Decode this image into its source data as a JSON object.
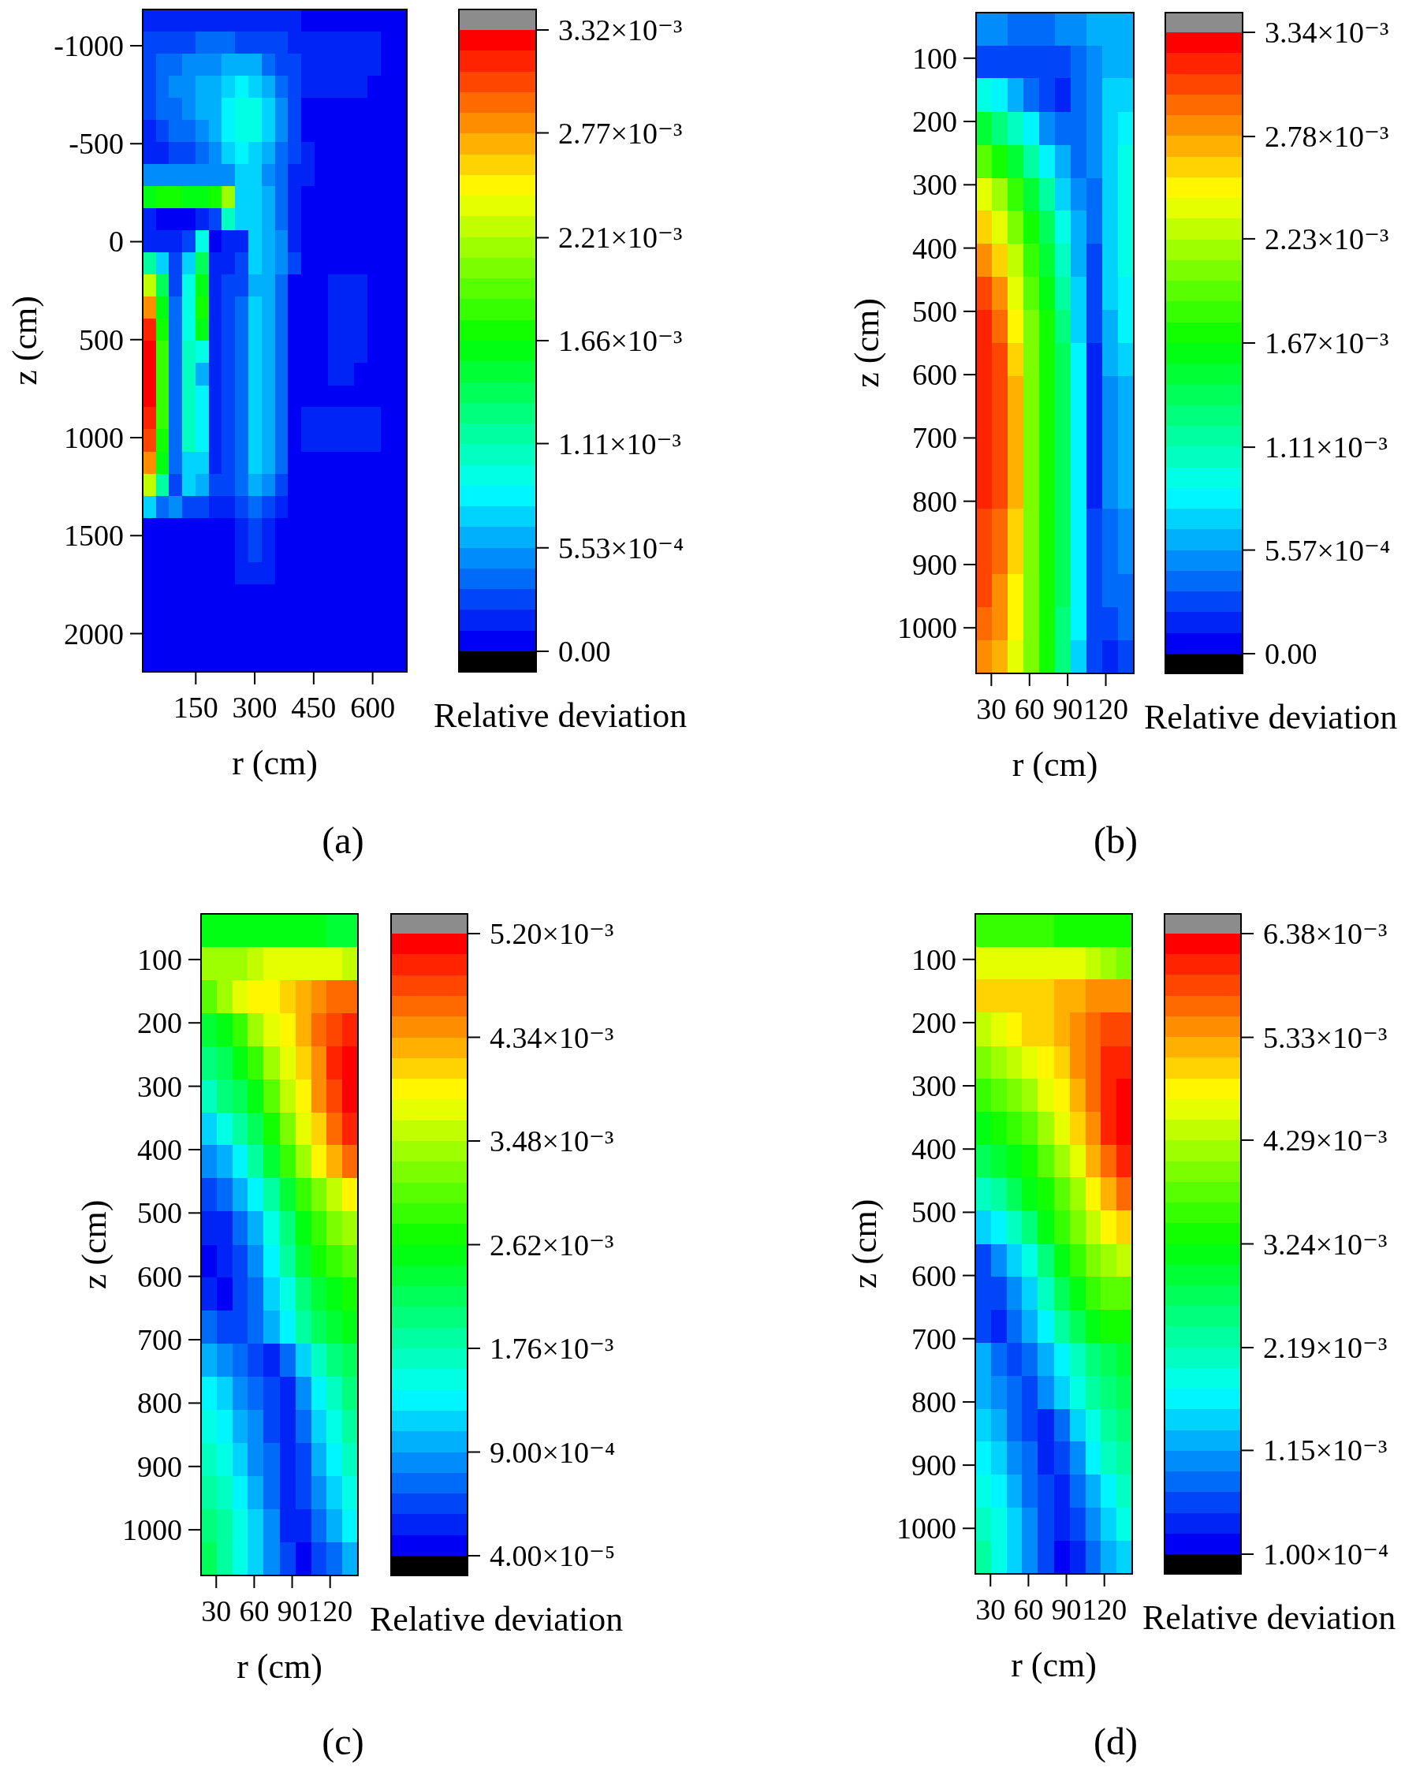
{
  "chart_data": [
    {
      "type": "heatmap",
      "title": "(a)",
      "xlabel": "r (cm)",
      "ylabel": "z (cm)",
      "clabel": "Relative deviation",
      "x": [
        32,
        65,
        99,
        133,
        166,
        200,
        233,
        267,
        301,
        334,
        368,
        401,
        435,
        469,
        502,
        536,
        569,
        603,
        637,
        670
      ],
      "y": [
        -1129,
        -1016,
        -903,
        -791,
        -678,
        -565,
        -452,
        -340,
        -227,
        -114,
        0,
        112,
        225,
        337,
        450,
        563,
        676,
        789,
        901,
        1014,
        1127,
        1240,
        1352,
        1465,
        1578,
        1691,
        1803,
        1916,
        2029,
        2142
      ],
      "xlim": [
        15,
        687
      ],
      "xticks": [
        150,
        300,
        450,
        600
      ],
      "ylim": [
        2195,
        -1185
      ],
      "yticks": [
        -1000,
        -500,
        0,
        500,
        1000,
        1500,
        2000
      ],
      "clim": [
        0,
        0.00332
      ],
      "cticks": [
        {
          "value": 0,
          "label": "0.00"
        },
        {
          "value": 0.000553,
          "label": "5.53×10⁻⁴"
        },
        {
          "value": 0.00111,
          "label": "1.11×10⁻³"
        },
        {
          "value": 0.00166,
          "label": "1.66×10⁻³"
        },
        {
          "value": 0.00221,
          "label": "2.21×10⁻³"
        },
        {
          "value": 0.00277,
          "label": "2.77×10⁻³"
        },
        {
          "value": 0.00332,
          "label": "3.32×10⁻³"
        }
      ],
      "cells": [
        [
          0.00012,
          0.00012,
          0.00012,
          0.00012,
          0.00012,
          0.00012,
          0.00012,
          0.00012,
          0.00012,
          0.00012,
          0.00012,
          0.00012,
          1e-05,
          1e-05,
          1e-05,
          1e-05,
          1e-05,
          1e-05,
          1e-05,
          1e-05
        ],
        [
          0.00023,
          0.00023,
          0.00023,
          0.00023,
          0.00034,
          0.00034,
          0.00034,
          0.00023,
          0.00023,
          0.00023,
          0.00023,
          0.00012,
          0.00012,
          0.00012,
          0.00012,
          0.00012,
          0.00012,
          0.00012,
          1e-05,
          1e-05
        ],
        [
          0.00023,
          0.00034,
          0.00034,
          0.00045,
          0.00045,
          0.00045,
          0.00056,
          0.00056,
          0.00056,
          0.00034,
          0.00023,
          0.00023,
          0.00012,
          0.00012,
          0.00012,
          0.00012,
          0.00012,
          0.00012,
          1e-05,
          1e-05
        ],
        [
          0.00023,
          0.00034,
          0.00045,
          0.00045,
          0.00056,
          0.00056,
          0.00067,
          0.00078,
          0.00067,
          0.00056,
          0.00034,
          0.00023,
          0.00012,
          0.00012,
          0.00012,
          0.00012,
          0.00012,
          1e-05,
          1e-05,
          1e-05
        ],
        [
          0.00023,
          0.00034,
          0.00034,
          0.00045,
          0.00056,
          0.00056,
          0.00078,
          0.00089,
          0.00089,
          0.00067,
          0.00045,
          0.00023,
          1e-05,
          1e-05,
          1e-05,
          1e-05,
          1e-05,
          1e-05,
          1e-05,
          1e-05
        ],
        [
          0.00012,
          0.00023,
          0.00034,
          0.00034,
          0.00045,
          0.00056,
          0.00078,
          0.00089,
          0.00089,
          0.00067,
          0.00045,
          0.00023,
          1e-05,
          1e-05,
          1e-05,
          1e-05,
          1e-05,
          1e-05,
          1e-05,
          1e-05
        ],
        [
          0.00012,
          0.00012,
          0.00023,
          0.00023,
          0.00034,
          0.00045,
          0.00067,
          0.00078,
          0.00067,
          0.00056,
          0.00034,
          0.00023,
          0.00012,
          1e-05,
          1e-05,
          1e-05,
          1e-05,
          1e-05,
          1e-05,
          1e-05
        ],
        [
          0.00045,
          0.00045,
          0.00045,
          0.00045,
          0.00045,
          0.00045,
          0.00045,
          0.00067,
          0.00067,
          0.00045,
          0.00034,
          0.00012,
          0.00012,
          1e-05,
          1e-05,
          1e-05,
          1e-05,
          1e-05,
          1e-05,
          1e-05
        ],
        [
          0.00155,
          0.00167,
          0.00167,
          0.00155,
          0.00155,
          0.00167,
          0.00211,
          0.00067,
          0.00067,
          0.00056,
          0.00034,
          0.00012,
          1e-05,
          1e-05,
          1e-05,
          1e-05,
          1e-05,
          1e-05,
          1e-05,
          1e-05
        ],
        [
          0.00012,
          1e-05,
          1e-05,
          1e-05,
          0.00012,
          0.00023,
          0.001,
          0.00067,
          0.00067,
          0.00056,
          0.00034,
          0.00012,
          1e-05,
          1e-05,
          1e-05,
          1e-05,
          1e-05,
          1e-05,
          1e-05,
          1e-05
        ],
        [
          0.00012,
          0.00012,
          0.00012,
          0.00023,
          0.00089,
          1e-05,
          0.00012,
          0.00012,
          0.00067,
          0.00056,
          0.00045,
          0.00012,
          1e-05,
          1e-05,
          1e-05,
          1e-05,
          1e-05,
          1e-05,
          1e-05,
          1e-05
        ],
        [
          0.00111,
          0.00067,
          0.00023,
          0.00067,
          0.00133,
          0.00012,
          0.00012,
          0.00023,
          0.00067,
          0.00056,
          0.00045,
          0.00023,
          1e-05,
          1e-05,
          1e-05,
          1e-05,
          1e-05,
          1e-05,
          1e-05,
          1e-05
        ],
        [
          0.00222,
          0.00133,
          0.00023,
          0.00089,
          0.00155,
          0.00012,
          0.00023,
          0.00023,
          0.00056,
          0.00056,
          0.00034,
          1e-05,
          1e-05,
          1e-05,
          0.00012,
          0.00012,
          0.00012,
          1e-05,
          1e-05,
          1e-05
        ],
        [
          0.00277,
          0.00155,
          0.00034,
          0.00089,
          0.00167,
          0.00012,
          0.00023,
          0.00034,
          0.00067,
          0.00056,
          0.00034,
          1e-05,
          1e-05,
          1e-05,
          0.00012,
          0.00012,
          0.00012,
          1e-05,
          1e-05,
          1e-05
        ],
        [
          0.0031,
          0.00167,
          0.00034,
          0.00089,
          0.00155,
          0.00012,
          0.00023,
          0.00034,
          0.00067,
          0.00056,
          0.00034,
          1e-05,
          1e-05,
          1e-05,
          0.00012,
          0.00012,
          0.00012,
          1e-05,
          1e-05,
          1e-05
        ],
        [
          0.00321,
          0.00178,
          0.00034,
          0.001,
          0.00089,
          0.00012,
          0.00023,
          0.00034,
          0.00067,
          0.00056,
          0.00034,
          1e-05,
          1e-05,
          1e-05,
          0.00012,
          0.00012,
          0.00012,
          1e-05,
          1e-05,
          1e-05
        ],
        [
          0.00321,
          0.00178,
          0.00034,
          0.001,
          0.00056,
          0.00012,
          0.00023,
          0.00034,
          0.00067,
          0.00056,
          0.00034,
          1e-05,
          1e-05,
          1e-05,
          0.00012,
          0.00012,
          1e-05,
          1e-05,
          1e-05,
          1e-05
        ],
        [
          0.00321,
          0.00178,
          0.00034,
          0.001,
          0.00078,
          0.00012,
          0.00023,
          0.00034,
          0.00067,
          0.00056,
          0.00034,
          1e-05,
          1e-05,
          1e-05,
          1e-05,
          1e-05,
          1e-05,
          1e-05,
          1e-05,
          1e-05
        ],
        [
          0.0031,
          0.00178,
          0.00034,
          0.001,
          0.00078,
          0.00012,
          0.00023,
          0.00034,
          0.00067,
          0.00056,
          0.00034,
          1e-05,
          0.00012,
          0.00012,
          0.00012,
          0.00012,
          0.00012,
          0.00012,
          1e-05,
          1e-05
        ],
        [
          0.00299,
          0.00167,
          0.00034,
          0.001,
          0.00078,
          0.00012,
          0.00023,
          0.00034,
          0.00067,
          0.00056,
          0.00034,
          1e-05,
          0.00012,
          0.00012,
          0.00012,
          0.00012,
          0.00012,
          0.00012,
          1e-05,
          1e-05
        ],
        [
          0.00277,
          0.00155,
          0.00034,
          0.00067,
          0.00067,
          0.00012,
          0.00023,
          0.00034,
          0.00067,
          0.00056,
          0.00034,
          1e-05,
          1e-05,
          1e-05,
          1e-05,
          1e-05,
          1e-05,
          1e-05,
          1e-05,
          1e-05
        ],
        [
          0.00222,
          0.00111,
          0.00023,
          0.00067,
          0.00056,
          0.00023,
          0.00023,
          0.00034,
          0.00056,
          0.00045,
          0.00023,
          1e-05,
          1e-05,
          1e-05,
          1e-05,
          1e-05,
          1e-05,
          1e-05,
          1e-05,
          1e-05
        ],
        [
          0.00067,
          0.00034,
          0.00045,
          0.00023,
          0.00023,
          0.00012,
          0.00012,
          0.00023,
          0.00034,
          0.00023,
          0.00012,
          1e-05,
          1e-05,
          1e-05,
          1e-05,
          1e-05,
          1e-05,
          1e-05,
          1e-05,
          1e-05
        ],
        [
          1e-05,
          1e-05,
          1e-05,
          1e-05,
          1e-05,
          1e-05,
          1e-05,
          0.00012,
          0.00023,
          0.00012,
          1e-05,
          1e-05,
          1e-05,
          1e-05,
          1e-05,
          1e-05,
          1e-05,
          1e-05,
          1e-05,
          1e-05
        ],
        [
          1e-05,
          1e-05,
          1e-05,
          1e-05,
          1e-05,
          1e-05,
          1e-05,
          0.00012,
          0.00023,
          0.00012,
          1e-05,
          1e-05,
          1e-05,
          1e-05,
          1e-05,
          1e-05,
          1e-05,
          1e-05,
          1e-05,
          1e-05
        ],
        [
          1e-05,
          1e-05,
          1e-05,
          1e-05,
          1e-05,
          1e-05,
          1e-05,
          0.00012,
          0.00012,
          0.00012,
          1e-05,
          1e-05,
          1e-05,
          1e-05,
          1e-05,
          1e-05,
          1e-05,
          1e-05,
          1e-05,
          1e-05
        ],
        [
          1e-05,
          1e-05,
          1e-05,
          1e-05,
          1e-05,
          1e-05,
          1e-05,
          1e-05,
          1e-05,
          1e-05,
          1e-05,
          1e-05,
          1e-05,
          1e-05,
          1e-05,
          1e-05,
          1e-05,
          1e-05,
          1e-05,
          1e-05
        ],
        [
          1e-05,
          1e-05,
          1e-05,
          1e-05,
          1e-05,
          1e-05,
          1e-05,
          1e-05,
          1e-05,
          1e-05,
          1e-05,
          1e-05,
          1e-05,
          1e-05,
          1e-05,
          1e-05,
          1e-05,
          1e-05,
          1e-05,
          1e-05
        ],
        [
          1e-05,
          1e-05,
          1e-05,
          1e-05,
          1e-05,
          1e-05,
          1e-05,
          1e-05,
          1e-05,
          1e-05,
          1e-05,
          1e-05,
          1e-05,
          1e-05,
          1e-05,
          1e-05,
          1e-05,
          1e-05,
          1e-05,
          1e-05
        ],
        [
          1e-05,
          1e-05,
          1e-05,
          1e-05,
          1e-05,
          1e-05,
          1e-05,
          1e-05,
          1e-05,
          1e-05,
          1e-05,
          1e-05,
          1e-05,
          1e-05,
          1e-05,
          1e-05,
          1e-05,
          1e-05,
          1e-05,
          1e-05
        ]
      ]
    },
    {
      "type": "heatmap",
      "title": "(b)",
      "xlabel": "r (cm)",
      "ylabel": "z (cm)",
      "clabel": "Relative deviation",
      "x": [
        24,
        37,
        49,
        61,
        74,
        86,
        99,
        111,
        123,
        136
      ],
      "y": [
        54,
        106,
        158,
        211,
        263,
        315,
        367,
        419,
        471,
        524,
        576,
        628,
        680,
        733,
        785,
        837,
        889,
        941,
        994,
        1046
      ],
      "xlim": [
        18,
        142
      ],
      "xticks": [
        30,
        60,
        90,
        120
      ],
      "ylim": [
        1072,
        28
      ],
      "yticks": [
        100,
        200,
        300,
        400,
        500,
        600,
        700,
        800,
        900,
        1000
      ],
      "clim": [
        0,
        0.00334
      ],
      "cticks": [
        {
          "value": 0,
          "label": "0.00"
        },
        {
          "value": 0.000557,
          "label": "5.57×10⁻⁴"
        },
        {
          "value": 0.00111,
          "label": "1.11×10⁻³"
        },
        {
          "value": 0.00167,
          "label": "1.67×10⁻³"
        },
        {
          "value": 0.00223,
          "label": "2.23×10⁻³"
        },
        {
          "value": 0.00278,
          "label": "2.78×10⁻³"
        },
        {
          "value": 0.00334,
          "label": "3.34×10⁻³"
        }
      ],
      "cells": [
        [
          0.00045,
          0.00045,
          0.00034,
          0.00034,
          0.00034,
          0.00045,
          0.00045,
          0.00056,
          0.00056,
          0.00056
        ],
        [
          0.00023,
          0.00023,
          0.00023,
          0.00023,
          0.00023,
          0.00023,
          0.00034,
          0.00045,
          0.00056,
          0.00056
        ],
        [
          0.0009,
          0.00078,
          0.00056,
          0.00034,
          0.00023,
          0.00012,
          0.00034,
          0.00045,
          0.00067,
          0.00067
        ],
        [
          0.00145,
          0.00123,
          0.00101,
          0.00078,
          0.00045,
          0.00034,
          0.00034,
          0.00045,
          0.00067,
          0.00078
        ],
        [
          0.0019,
          0.00168,
          0.00145,
          0.00112,
          0.00078,
          0.00056,
          0.00034,
          0.00045,
          0.00067,
          0.0009
        ],
        [
          0.00234,
          0.00212,
          0.00179,
          0.00145,
          0.00112,
          0.00067,
          0.00045,
          0.00034,
          0.00067,
          0.0009
        ],
        [
          0.00257,
          0.00234,
          0.00201,
          0.00168,
          0.00134,
          0.0009,
          0.00056,
          0.00034,
          0.00067,
          0.0009
        ],
        [
          0.00279,
          0.00257,
          0.00223,
          0.00179,
          0.00145,
          0.00101,
          0.00056,
          0.00023,
          0.00067,
          0.0009
        ],
        [
          0.00301,
          0.00279,
          0.00234,
          0.0019,
          0.00156,
          0.00112,
          0.00067,
          0.00023,
          0.00067,
          0.00078
        ],
        [
          0.00312,
          0.0029,
          0.00245,
          0.00201,
          0.00168,
          0.00123,
          0.00067,
          0.00023,
          0.00056,
          0.00078
        ],
        [
          0.00312,
          0.00301,
          0.00257,
          0.00201,
          0.00168,
          0.00134,
          0.00078,
          0.00012,
          0.00056,
          0.00067
        ],
        [
          0.00312,
          0.00301,
          0.00268,
          0.00201,
          0.00168,
          0.00134,
          0.00078,
          0.00012,
          0.00045,
          0.00056
        ],
        [
          0.00312,
          0.00301,
          0.00268,
          0.00201,
          0.00168,
          0.00134,
          0.00078,
          0.00012,
          0.00045,
          0.00056
        ],
        [
          0.00312,
          0.00301,
          0.00268,
          0.00201,
          0.00168,
          0.00134,
          0.00078,
          0.00012,
          0.00045,
          0.00056
        ],
        [
          0.00312,
          0.00301,
          0.00268,
          0.00201,
          0.00168,
          0.00134,
          0.00078,
          0.00012,
          0.00045,
          0.00056
        ],
        [
          0.00301,
          0.0029,
          0.00257,
          0.00201,
          0.00168,
          0.00134,
          0.00078,
          0.00023,
          0.00034,
          0.00045
        ],
        [
          0.00301,
          0.0029,
          0.00257,
          0.00201,
          0.00168,
          0.00134,
          0.00078,
          0.00023,
          0.00034,
          0.00045
        ],
        [
          0.00301,
          0.00279,
          0.00245,
          0.00201,
          0.00168,
          0.00134,
          0.00078,
          0.00023,
          0.00034,
          0.00034
        ],
        [
          0.0029,
          0.00279,
          0.00245,
          0.00201,
          0.00168,
          0.00123,
          0.00078,
          0.00023,
          0.00023,
          0.00034
        ],
        [
          0.00279,
          0.00268,
          0.00234,
          0.00201,
          0.00168,
          0.00123,
          0.00067,
          0.00023,
          0.00012,
          0.00023
        ]
      ]
    },
    {
      "type": "heatmap",
      "title": "(c)",
      "xlabel": "r (cm)",
      "ylabel": "z (cm)",
      "clabel": "Relative deviation",
      "x": [
        24,
        37,
        49,
        61,
        74,
        86,
        99,
        111,
        123,
        136
      ],
      "y": [
        54,
        106,
        158,
        211,
        263,
        315,
        367,
        419,
        471,
        524,
        576,
        628,
        680,
        733,
        785,
        837,
        889,
        941,
        994,
        1046
      ],
      "xlim": [
        18,
        142
      ],
      "xticks": [
        30,
        60,
        90,
        120
      ],
      "ylim": [
        1072,
        28
      ],
      "yticks": [
        100,
        200,
        300,
        400,
        500,
        600,
        700,
        800,
        900,
        1000
      ],
      "clim": [
        4e-05,
        0.0052
      ],
      "cticks": [
        {
          "value": 4e-05,
          "label": "4.00×10⁻⁵"
        },
        {
          "value": 0.0009,
          "label": "9.00×10⁻⁴"
        },
        {
          "value": 0.00176,
          "label": "1.76×10⁻³"
        },
        {
          "value": 0.00262,
          "label": "2.62×10⁻³"
        },
        {
          "value": 0.00348,
          "label": "3.48×10⁻³"
        },
        {
          "value": 0.00434,
          "label": "4.34×10⁻³"
        },
        {
          "value": 0.0052,
          "label": "5.20×10⁻³"
        }
      ],
      "cells": [
        [
          0.00245,
          0.00245,
          0.00245,
          0.00245,
          0.00245,
          0.00245,
          0.00245,
          0.00245,
          0.00228,
          0.00228
        ],
        [
          0.00331,
          0.00331,
          0.00331,
          0.00349,
          0.00366,
          0.00366,
          0.00366,
          0.00366,
          0.00366,
          0.00349
        ],
        [
          0.00297,
          0.00331,
          0.00366,
          0.00383,
          0.00383,
          0.004,
          0.00417,
          0.00435,
          0.00452,
          0.00452
        ],
        [
          0.00228,
          0.00245,
          0.0028,
          0.00331,
          0.00366,
          0.00383,
          0.00417,
          0.00452,
          0.00469,
          0.00486
        ],
        [
          0.00194,
          0.00211,
          0.00245,
          0.0028,
          0.00331,
          0.00366,
          0.004,
          0.00435,
          0.00486,
          0.00503
        ],
        [
          0.00159,
          0.00194,
          0.00211,
          0.00245,
          0.00297,
          0.00349,
          0.00383,
          0.00435,
          0.00469,
          0.00503
        ],
        [
          0.00108,
          0.00142,
          0.00177,
          0.00211,
          0.00263,
          0.00314,
          0.00366,
          0.004,
          0.00452,
          0.00486
        ],
        [
          0.00073,
          0.00091,
          0.00125,
          0.00177,
          0.00228,
          0.0028,
          0.00331,
          0.00383,
          0.00417,
          0.00452
        ],
        [
          0.00039,
          0.00056,
          0.00091,
          0.00125,
          0.00177,
          0.00228,
          0.0028,
          0.00314,
          0.00349,
          0.00383
        ],
        [
          0.00022,
          0.00022,
          0.00056,
          0.00091,
          0.00142,
          0.00194,
          0.00245,
          0.0028,
          0.00314,
          0.00331
        ],
        [
          5e-05,
          0.00022,
          0.00039,
          0.00073,
          0.00125,
          0.00177,
          0.00228,
          0.00263,
          0.0028,
          0.00297
        ],
        [
          0.00022,
          5e-05,
          0.00039,
          0.00056,
          0.00108,
          0.00142,
          0.00194,
          0.00228,
          0.00245,
          0.00263
        ],
        [
          0.00056,
          0.00039,
          0.00039,
          0.00056,
          0.00091,
          0.00125,
          0.00177,
          0.00211,
          0.00228,
          0.00245
        ],
        [
          0.00091,
          0.00073,
          0.00056,
          0.00039,
          0.00022,
          0.00056,
          0.00108,
          0.00159,
          0.00194,
          0.00211
        ],
        [
          0.00125,
          0.00108,
          0.00073,
          0.00056,
          0.00039,
          0.00022,
          0.00073,
          0.00125,
          0.00159,
          0.00194
        ],
        [
          0.00142,
          0.00125,
          0.00091,
          0.00073,
          0.00039,
          0.00022,
          0.00056,
          0.00108,
          0.00142,
          0.00177
        ],
        [
          0.00159,
          0.00142,
          0.00108,
          0.00073,
          0.00056,
          0.00022,
          0.00039,
          0.00091,
          0.00125,
          0.00159
        ],
        [
          0.00177,
          0.00159,
          0.00125,
          0.00091,
          0.00056,
          0.00022,
          0.00039,
          0.00073,
          0.00108,
          0.00142
        ],
        [
          0.00194,
          0.00177,
          0.00142,
          0.00108,
          0.00073,
          0.00022,
          0.00022,
          0.00056,
          0.00091,
          0.00125
        ],
        [
          0.00211,
          0.00177,
          0.00142,
          0.00108,
          0.00073,
          0.00039,
          5e-05,
          0.00039,
          0.00056,
          0.00091
        ]
      ]
    },
    {
      "type": "heatmap",
      "title": "(d)",
      "xlabel": "r (cm)",
      "ylabel": "z (cm)",
      "clabel": "Relative deviation",
      "x": [
        24,
        37,
        49,
        61,
        74,
        86,
        99,
        111,
        123,
        136
      ],
      "y": [
        54,
        106,
        158,
        211,
        263,
        315,
        367,
        419,
        471,
        524,
        576,
        628,
        680,
        733,
        785,
        837,
        889,
        941,
        994,
        1046
      ],
      "xlim": [
        18,
        142
      ],
      "xticks": [
        30,
        60,
        90,
        120
      ],
      "ylim": [
        1072,
        28
      ],
      "yticks": [
        100,
        200,
        300,
        400,
        500,
        600,
        700,
        800,
        900,
        1000
      ],
      "clim": [
        0.0001,
        0.00638
      ],
      "cticks": [
        {
          "value": 0.0001,
          "label": "1.00×10⁻⁴"
        },
        {
          "value": 0.00115,
          "label": "1.15×10⁻³"
        },
        {
          "value": 0.00219,
          "label": "2.19×10⁻³"
        },
        {
          "value": 0.00324,
          "label": "3.24×10⁻³"
        },
        {
          "value": 0.00429,
          "label": "4.29×10⁻³"
        },
        {
          "value": 0.00533,
          "label": "5.33×10⁻³"
        },
        {
          "value": 0.00638,
          "label": "6.38×10⁻³"
        }
      ],
      "cells": [
        [
          0.00345,
          0.00345,
          0.00345,
          0.00345,
          0.00345,
          0.00325,
          0.00325,
          0.00325,
          0.00325,
          0.00325
        ],
        [
          0.0045,
          0.0045,
          0.0045,
          0.0045,
          0.0045,
          0.0045,
          0.0045,
          0.00429,
          0.00408,
          0.00387
        ],
        [
          0.00492,
          0.00492,
          0.00492,
          0.00492,
          0.00492,
          0.00513,
          0.00513,
          0.00534,
          0.00534,
          0.00534
        ],
        [
          0.00429,
          0.0045,
          0.00471,
          0.00492,
          0.00492,
          0.00513,
          0.00534,
          0.00555,
          0.00576,
          0.00576
        ],
        [
          0.00387,
          0.00408,
          0.00429,
          0.0045,
          0.00471,
          0.00492,
          0.00534,
          0.00555,
          0.00597,
          0.00597
        ],
        [
          0.00345,
          0.00366,
          0.00387,
          0.00408,
          0.0045,
          0.00471,
          0.00513,
          0.00555,
          0.00597,
          0.00618
        ],
        [
          0.00304,
          0.00325,
          0.00345,
          0.00366,
          0.00408,
          0.0045,
          0.00492,
          0.00534,
          0.00597,
          0.00618
        ],
        [
          0.00262,
          0.00283,
          0.00304,
          0.00325,
          0.00366,
          0.00408,
          0.0045,
          0.00513,
          0.00555,
          0.00597
        ],
        [
          0.00199,
          0.0022,
          0.00262,
          0.00304,
          0.00325,
          0.00366,
          0.00408,
          0.00471,
          0.00513,
          0.00555
        ],
        [
          0.00136,
          0.00157,
          0.00199,
          0.00241,
          0.00304,
          0.00345,
          0.00387,
          0.00429,
          0.00471,
          0.00492
        ],
        [
          0.00052,
          0.00094,
          0.00136,
          0.00178,
          0.00241,
          0.00304,
          0.00345,
          0.00387,
          0.00408,
          0.00429
        ],
        [
          0.00052,
          0.00052,
          0.00094,
          0.00136,
          0.00199,
          0.00262,
          0.00304,
          0.00345,
          0.00366,
          0.00366
        ],
        [
          0.00052,
          0.00031,
          0.00073,
          0.00115,
          0.00157,
          0.0022,
          0.00262,
          0.00304,
          0.00325,
          0.00325
        ],
        [
          0.00115,
          0.00073,
          0.00052,
          0.00073,
          0.00115,
          0.00157,
          0.00199,
          0.00241,
          0.00262,
          0.00283
        ],
        [
          0.00115,
          0.00094,
          0.00073,
          0.00052,
          0.00094,
          0.00136,
          0.00178,
          0.0022,
          0.00241,
          0.00262
        ],
        [
          0.00136,
          0.00115,
          0.00073,
          0.00052,
          0.00031,
          0.00073,
          0.00136,
          0.00178,
          0.0022,
          0.00241
        ],
        [
          0.00157,
          0.00136,
          0.00094,
          0.00073,
          0.00031,
          0.00052,
          0.00094,
          0.00157,
          0.00199,
          0.0022
        ],
        [
          0.00178,
          0.00157,
          0.00115,
          0.00073,
          0.00052,
          0.00031,
          0.00073,
          0.00115,
          0.00157,
          0.00199
        ],
        [
          0.00199,
          0.00178,
          0.00136,
          0.00094,
          0.00052,
          0.00031,
          0.00052,
          0.00094,
          0.00136,
          0.00178
        ],
        [
          0.0022,
          0.00178,
          0.00136,
          0.00094,
          0.00052,
          0.00011,
          0.00031,
          0.00073,
          0.00115,
          0.00136
        ]
      ]
    }
  ]
}
